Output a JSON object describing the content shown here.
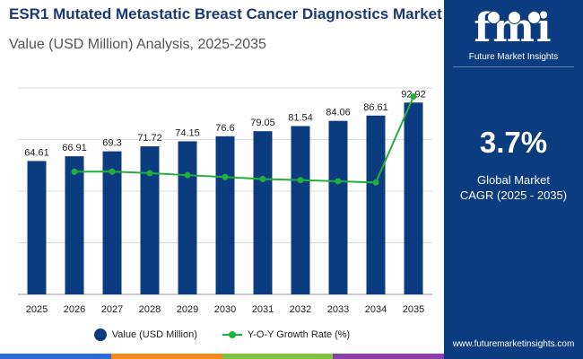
{
  "header": {
    "title": "ESR1 Mutated Metastatic Breast Cancer Diagnostics Market",
    "subtitle": "Value (USD Million) Analysis, 2025-2035"
  },
  "chart_data": {
    "type": "bar",
    "categories": [
      "2025",
      "2026",
      "2027",
      "2028",
      "2029",
      "2030",
      "2031",
      "2032",
      "2033",
      "2034",
      "2035"
    ],
    "series": [
      {
        "name": "Value (USD Million)",
        "type": "bar",
        "color": "#0c3c80",
        "values": [
          64.61,
          66.91,
          69.3,
          71.72,
          74.15,
          76.6,
          79.05,
          81.54,
          84.06,
          86.61,
          92.92
        ],
        "labels": [
          "64.61",
          "66.91",
          "69.3",
          "71.72",
          "74.15",
          "76.6",
          "79.05",
          "81.54",
          "84.06",
          "86.61",
          "92.92"
        ]
      },
      {
        "name": "Y-O-Y Growth Rate (%)",
        "type": "line",
        "color": "#22b03c",
        "x": [
          "2026",
          "2027",
          "2028",
          "2029",
          "2030",
          "2031",
          "2032",
          "2033",
          "2034",
          "2035"
        ],
        "values": [
          3.56,
          3.57,
          3.49,
          3.39,
          3.3,
          3.2,
          3.15,
          3.09,
          3.03,
          7.28
        ]
      }
    ],
    "ylim": [
      0,
      100
    ],
    "y2lim": [
      -2.5,
      7.7
    ],
    "grid": true,
    "legend": "bottom"
  },
  "legend": {
    "bar_label": "Value (USD Million)",
    "line_label": "Y-O-Y Growth Rate (%)"
  },
  "panel": {
    "logo_text": "fmi",
    "logo_subtitle": "Future Market Insights",
    "cagr_value": "3.7%",
    "cagr_label_line1": "Global Market",
    "cagr_label_line2": "CAGR (2025 - 2035)",
    "website": "www.futuremarketinsights.com"
  },
  "colors": {
    "brand_navy": "#0c3c80",
    "line_green": "#22b03c",
    "bottom_stripe": [
      "#2e6bd6",
      "#f08a1c",
      "#7ec242",
      "#8b3fa8"
    ]
  }
}
